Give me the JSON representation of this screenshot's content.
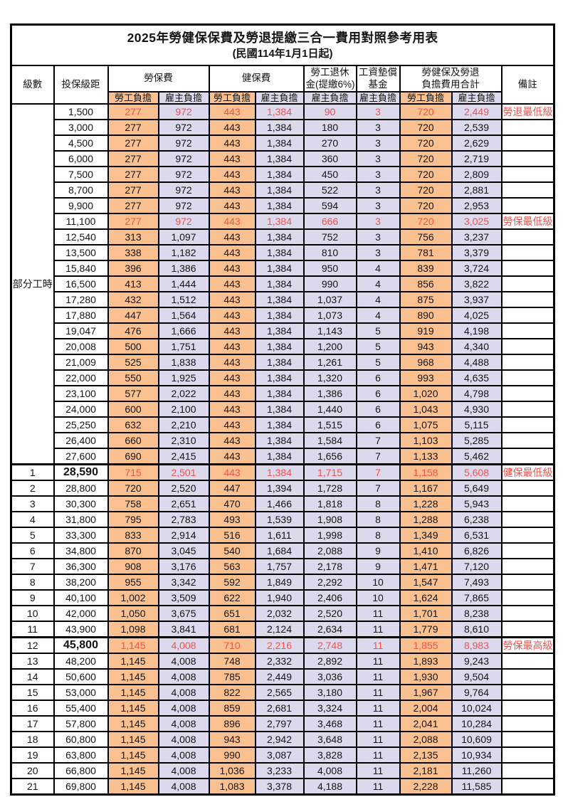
{
  "title": "2025年勞健保保費及勞退提繳三合一費用對照參考用表",
  "subtitle": "(民國114年1月1日起)",
  "header": {
    "level": "級數",
    "bracket": "投保級距",
    "labor_insurance": "勞保費",
    "health_insurance": "健保費",
    "pension": {
      "line1": "勞工退休",
      "line2": "金(提繳6%)"
    },
    "wage_fund": {
      "line1": "工資墊償",
      "line2": "基金"
    },
    "total": {
      "line1": "勞健保及勞退",
      "line2": "負擔費用合計"
    },
    "remark": "備註",
    "employee_label": "勞工負擔",
    "employer_label": "雇主負擔"
  },
  "part_time_label": "部分工時",
  "colors": {
    "employee_bg": "#FAC090",
    "employer_bg": "#DCD9EC",
    "highlight_red": "#F6504C"
  },
  "rows": [
    {
      "level": "",
      "bracket": "1,500",
      "values": [
        "277",
        "972",
        "443",
        "1,384",
        "90",
        "3",
        "720",
        "2,449"
      ],
      "note": "勞退最低級距",
      "highlight": true,
      "bold_bracket": false,
      "thick_top": false
    },
    {
      "level": "",
      "bracket": "3,000",
      "values": [
        "277",
        "972",
        "443",
        "1,384",
        "180",
        "3",
        "720",
        "2,539"
      ],
      "note": "",
      "highlight": false,
      "bold_bracket": false,
      "thick_top": false
    },
    {
      "level": "",
      "bracket": "4,500",
      "values": [
        "277",
        "972",
        "443",
        "1,384",
        "270",
        "3",
        "720",
        "2,629"
      ],
      "note": "",
      "highlight": false,
      "bold_bracket": false,
      "thick_top": false
    },
    {
      "level": "",
      "bracket": "6,000",
      "values": [
        "277",
        "972",
        "443",
        "1,384",
        "360",
        "3",
        "720",
        "2,719"
      ],
      "note": "",
      "highlight": false,
      "bold_bracket": false,
      "thick_top": false
    },
    {
      "level": "",
      "bracket": "7,500",
      "values": [
        "277",
        "972",
        "443",
        "1,384",
        "450",
        "3",
        "720",
        "2,809"
      ],
      "note": "",
      "highlight": false,
      "bold_bracket": false,
      "thick_top": false
    },
    {
      "level": "",
      "bracket": "8,700",
      "values": [
        "277",
        "972",
        "443",
        "1,384",
        "522",
        "3",
        "720",
        "2,881"
      ],
      "note": "",
      "highlight": false,
      "bold_bracket": false,
      "thick_top": false
    },
    {
      "level": "",
      "bracket": "9,900",
      "values": [
        "277",
        "972",
        "443",
        "1,384",
        "594",
        "3",
        "720",
        "2,953"
      ],
      "note": "",
      "highlight": false,
      "bold_bracket": false,
      "thick_top": false
    },
    {
      "level": "",
      "bracket": "11,100",
      "values": [
        "277",
        "972",
        "443",
        "1,384",
        "666",
        "3",
        "720",
        "3,025"
      ],
      "note": "勞保最低級距",
      "highlight": true,
      "bold_bracket": false,
      "thick_top": false
    },
    {
      "level": "",
      "bracket": "12,540",
      "values": [
        "313",
        "1,097",
        "443",
        "1,384",
        "752",
        "3",
        "756",
        "3,237"
      ],
      "note": "",
      "highlight": false,
      "bold_bracket": false,
      "thick_top": false
    },
    {
      "level": "",
      "bracket": "13,500",
      "values": [
        "338",
        "1,182",
        "443",
        "1,384",
        "810",
        "3",
        "781",
        "3,379"
      ],
      "note": "",
      "highlight": false,
      "bold_bracket": false,
      "thick_top": false
    },
    {
      "level": "",
      "bracket": "15,840",
      "values": [
        "396",
        "1,386",
        "443",
        "1,384",
        "950",
        "4",
        "839",
        "3,724"
      ],
      "note": "",
      "highlight": false,
      "bold_bracket": false,
      "thick_top": false
    },
    {
      "level": "",
      "bracket": "16,500",
      "values": [
        "413",
        "1,444",
        "443",
        "1,384",
        "990",
        "4",
        "856",
        "3,822"
      ],
      "note": "",
      "highlight": false,
      "bold_bracket": false,
      "thick_top": false
    },
    {
      "level": "",
      "bracket": "17,280",
      "values": [
        "432",
        "1,512",
        "443",
        "1,384",
        "1,037",
        "4",
        "875",
        "3,937"
      ],
      "note": "",
      "highlight": false,
      "bold_bracket": false,
      "thick_top": false
    },
    {
      "level": "",
      "bracket": "17,880",
      "values": [
        "447",
        "1,564",
        "443",
        "1,384",
        "1,073",
        "4",
        "890",
        "4,025"
      ],
      "note": "",
      "highlight": false,
      "bold_bracket": false,
      "thick_top": false
    },
    {
      "level": "",
      "bracket": "19,047",
      "values": [
        "476",
        "1,666",
        "443",
        "1,384",
        "1,143",
        "5",
        "919",
        "4,198"
      ],
      "note": "",
      "highlight": false,
      "bold_bracket": false,
      "thick_top": false
    },
    {
      "level": "",
      "bracket": "20,008",
      "values": [
        "500",
        "1,751",
        "443",
        "1,384",
        "1,200",
        "5",
        "943",
        "4,340"
      ],
      "note": "",
      "highlight": false,
      "bold_bracket": false,
      "thick_top": false
    },
    {
      "level": "",
      "bracket": "21,009",
      "values": [
        "525",
        "1,838",
        "443",
        "1,384",
        "1,261",
        "5",
        "968",
        "4,488"
      ],
      "note": "",
      "highlight": false,
      "bold_bracket": false,
      "thick_top": false
    },
    {
      "level": "",
      "bracket": "22,000",
      "values": [
        "550",
        "1,925",
        "443",
        "1,384",
        "1,320",
        "6",
        "993",
        "4,635"
      ],
      "note": "",
      "highlight": false,
      "bold_bracket": false,
      "thick_top": false
    },
    {
      "level": "",
      "bracket": "23,100",
      "values": [
        "577",
        "2,022",
        "443",
        "1,384",
        "1,386",
        "6",
        "1,020",
        "4,798"
      ],
      "note": "",
      "highlight": false,
      "bold_bracket": false,
      "thick_top": false
    },
    {
      "level": "",
      "bracket": "24,000",
      "values": [
        "600",
        "2,100",
        "443",
        "1,384",
        "1,440",
        "6",
        "1,043",
        "4,930"
      ],
      "note": "",
      "highlight": false,
      "bold_bracket": false,
      "thick_top": false
    },
    {
      "level": "",
      "bracket": "25,250",
      "values": [
        "632",
        "2,210",
        "443",
        "1,384",
        "1,515",
        "6",
        "1,075",
        "5,115"
      ],
      "note": "",
      "highlight": false,
      "bold_bracket": false,
      "thick_top": false
    },
    {
      "level": "",
      "bracket": "26,400",
      "values": [
        "660",
        "2,310",
        "443",
        "1,384",
        "1,584",
        "7",
        "1,103",
        "5,285"
      ],
      "note": "",
      "highlight": false,
      "bold_bracket": false,
      "thick_top": false
    },
    {
      "level": "",
      "bracket": "27,600",
      "values": [
        "690",
        "2,415",
        "443",
        "1,384",
        "1,656",
        "7",
        "1,133",
        "5,462"
      ],
      "note": "",
      "highlight": false,
      "bold_bracket": false,
      "thick_top": false
    },
    {
      "level": "1",
      "bracket": "28,590",
      "values": [
        "715",
        "2,501",
        "443",
        "1,384",
        "1,715",
        "7",
        "1,158",
        "5,608"
      ],
      "note": "健保最低級距",
      "highlight": true,
      "bold_bracket": true,
      "thick_top": true
    },
    {
      "level": "2",
      "bracket": "28,800",
      "values": [
        "720",
        "2,520",
        "447",
        "1,394",
        "1,728",
        "7",
        "1,167",
        "5,649"
      ],
      "note": "",
      "highlight": false,
      "bold_bracket": false,
      "thick_top": false
    },
    {
      "level": "3",
      "bracket": "30,300",
      "values": [
        "758",
        "2,651",
        "470",
        "1,466",
        "1,818",
        "8",
        "1,228",
        "5,943"
      ],
      "note": "",
      "highlight": false,
      "bold_bracket": false,
      "thick_top": false
    },
    {
      "level": "4",
      "bracket": "31,800",
      "values": [
        "795",
        "2,783",
        "493",
        "1,539",
        "1,908",
        "8",
        "1,288",
        "6,238"
      ],
      "note": "",
      "highlight": false,
      "bold_bracket": false,
      "thick_top": false
    },
    {
      "level": "5",
      "bracket": "33,300",
      "values": [
        "833",
        "2,914",
        "516",
        "1,611",
        "1,998",
        "8",
        "1,349",
        "6,531"
      ],
      "note": "",
      "highlight": false,
      "bold_bracket": false,
      "thick_top": false
    },
    {
      "level": "6",
      "bracket": "34,800",
      "values": [
        "870",
        "3,045",
        "540",
        "1,684",
        "2,088",
        "9",
        "1,410",
        "6,826"
      ],
      "note": "",
      "highlight": false,
      "bold_bracket": false,
      "thick_top": false
    },
    {
      "level": "7",
      "bracket": "36,300",
      "values": [
        "908",
        "3,176",
        "563",
        "1,757",
        "2,178",
        "9",
        "1,471",
        "7,120"
      ],
      "note": "",
      "highlight": false,
      "bold_bracket": false,
      "thick_top": false
    },
    {
      "level": "8",
      "bracket": "38,200",
      "values": [
        "955",
        "3,342",
        "592",
        "1,849",
        "2,292",
        "10",
        "1,547",
        "7,493"
      ],
      "note": "",
      "highlight": false,
      "bold_bracket": false,
      "thick_top": false
    },
    {
      "level": "9",
      "bracket": "40,100",
      "values": [
        "1,002",
        "3,509",
        "622",
        "1,940",
        "2,406",
        "10",
        "1,624",
        "7,865"
      ],
      "note": "",
      "highlight": false,
      "bold_bracket": false,
      "thick_top": false
    },
    {
      "level": "10",
      "bracket": "42,000",
      "values": [
        "1,050",
        "3,675",
        "651",
        "2,032",
        "2,520",
        "11",
        "1,701",
        "8,238"
      ],
      "note": "",
      "highlight": false,
      "bold_bracket": false,
      "thick_top": false
    },
    {
      "level": "11",
      "bracket": "43,900",
      "values": [
        "1,098",
        "3,841",
        "681",
        "2,124",
        "2,634",
        "11",
        "1,779",
        "8,610"
      ],
      "note": "",
      "highlight": false,
      "bold_bracket": false,
      "thick_top": false
    },
    {
      "level": "12",
      "bracket": "45,800",
      "values": [
        "1,145",
        "4,008",
        "710",
        "2,216",
        "2,748",
        "11",
        "1,855",
        "8,983"
      ],
      "note": "勞保最高級距",
      "highlight": true,
      "bold_bracket": true,
      "thick_top": true
    },
    {
      "level": "13",
      "bracket": "48,200",
      "values": [
        "1,145",
        "4,008",
        "748",
        "2,332",
        "2,892",
        "11",
        "1,893",
        "9,243"
      ],
      "note": "",
      "highlight": false,
      "bold_bracket": false,
      "thick_top": false
    },
    {
      "level": "14",
      "bracket": "50,600",
      "values": [
        "1,145",
        "4,008",
        "785",
        "2,449",
        "3,036",
        "11",
        "1,930",
        "9,504"
      ],
      "note": "",
      "highlight": false,
      "bold_bracket": false,
      "thick_top": false
    },
    {
      "level": "15",
      "bracket": "53,000",
      "values": [
        "1,145",
        "4,008",
        "822",
        "2,565",
        "3,180",
        "11",
        "1,967",
        "9,764"
      ],
      "note": "",
      "highlight": false,
      "bold_bracket": false,
      "thick_top": false
    },
    {
      "level": "16",
      "bracket": "55,400",
      "values": [
        "1,145",
        "4,008",
        "859",
        "2,681",
        "3,324",
        "11",
        "2,004",
        "10,024"
      ],
      "note": "",
      "highlight": false,
      "bold_bracket": false,
      "thick_top": false
    },
    {
      "level": "17",
      "bracket": "57,800",
      "values": [
        "1,145",
        "4,008",
        "896",
        "2,797",
        "3,468",
        "11",
        "2,041",
        "10,284"
      ],
      "note": "",
      "highlight": false,
      "bold_bracket": false,
      "thick_top": false
    },
    {
      "level": "18",
      "bracket": "60,800",
      "values": [
        "1,145",
        "4,008",
        "943",
        "2,942",
        "3,648",
        "11",
        "2,088",
        "10,609"
      ],
      "note": "",
      "highlight": false,
      "bold_bracket": false,
      "thick_top": false
    },
    {
      "level": "19",
      "bracket": "63,800",
      "values": [
        "1,145",
        "4,008",
        "990",
        "3,087",
        "3,828",
        "11",
        "2,135",
        "10,934"
      ],
      "note": "",
      "highlight": false,
      "bold_bracket": false,
      "thick_top": false
    },
    {
      "level": "20",
      "bracket": "66,800",
      "values": [
        "1,145",
        "4,008",
        "1,036",
        "3,233",
        "4,008",
        "11",
        "2,181",
        "11,260"
      ],
      "note": "",
      "highlight": false,
      "bold_bracket": false,
      "thick_top": false
    },
    {
      "level": "21",
      "bracket": "69,800",
      "values": [
        "1,145",
        "4,008",
        "1,083",
        "3,378",
        "4,188",
        "11",
        "2,228",
        "11,585"
      ],
      "note": "",
      "highlight": false,
      "bold_bracket": false,
      "thick_top": false
    }
  ]
}
